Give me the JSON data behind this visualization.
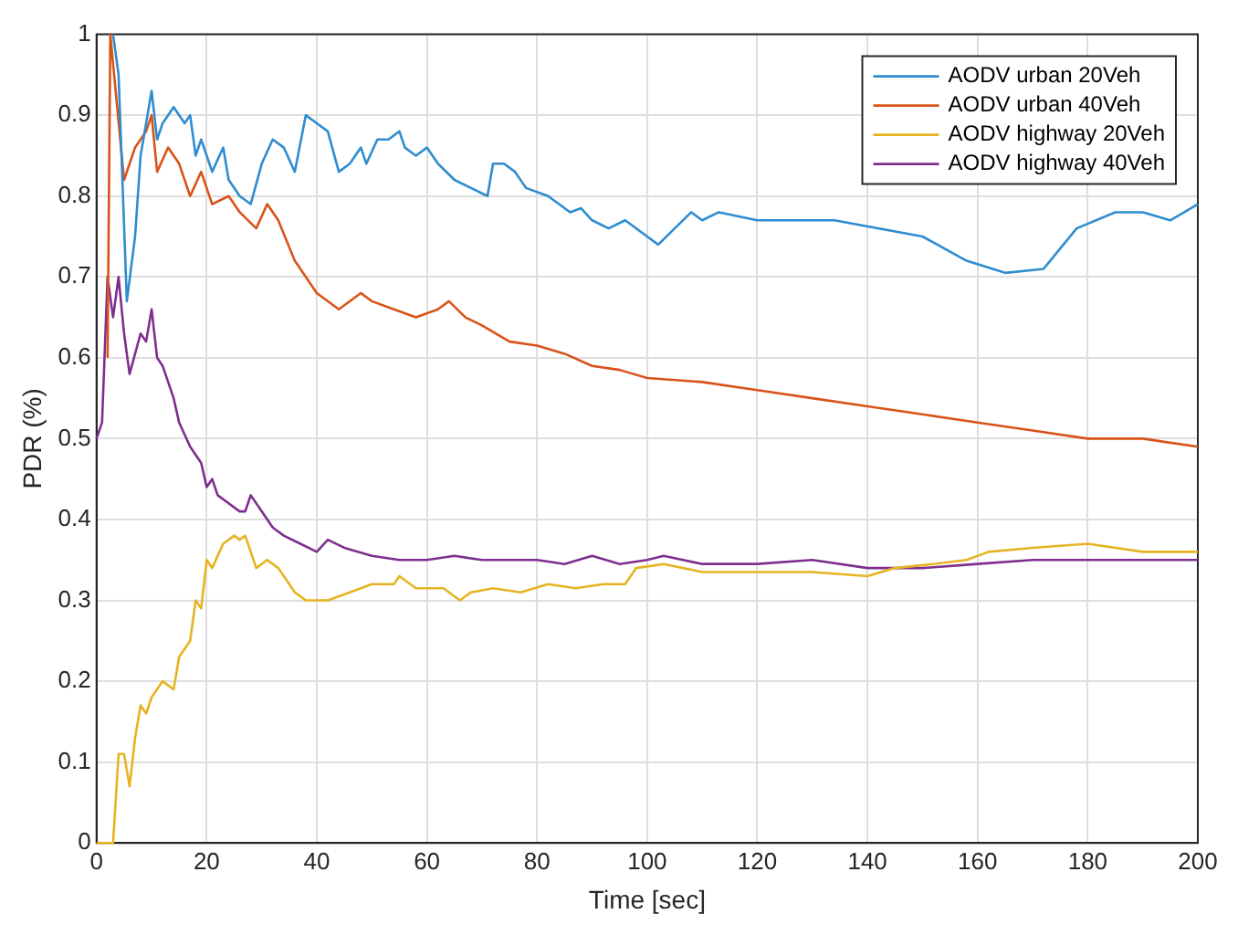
{
  "chart_data": {
    "type": "line",
    "xlabel": "Time [sec]",
    "ylabel": "PDR (%)",
    "xlim": [
      0,
      200
    ],
    "xticks": [
      0,
      20,
      40,
      60,
      80,
      100,
      120,
      140,
      160,
      180,
      200
    ],
    "ylim": [
      0,
      1
    ],
    "yticks": [
      0,
      0.1,
      0.2,
      0.3,
      0.4,
      0.5,
      0.6,
      0.7,
      0.8,
      0.9,
      1
    ],
    "grid": true,
    "legend": "top right",
    "marker": "none",
    "line_style": "solid",
    "series": [
      {
        "name": "AODV urban 20Veh",
        "color": "#2f8ccf",
        "x": [
          3,
          4,
          5.5,
          7,
          8,
          10,
          11,
          12,
          14,
          16,
          17,
          18,
          19,
          21,
          23,
          24,
          26,
          28,
          30,
          32,
          34,
          36,
          38,
          40,
          42,
          44,
          46,
          48,
          49,
          51,
          53,
          55,
          56,
          58,
          60,
          62,
          65,
          68,
          71,
          72,
          74,
          76,
          78,
          82,
          84,
          86,
          88,
          90,
          93,
          96,
          100,
          102,
          105,
          108,
          110,
          113,
          120,
          134,
          150,
          158,
          165,
          172,
          178,
          185,
          190,
          195,
          200
        ],
        "values": [
          1,
          0.95,
          0.67,
          0.75,
          0.85,
          0.93,
          0.87,
          0.89,
          0.91,
          0.89,
          0.9,
          0.85,
          0.87,
          0.83,
          0.86,
          0.82,
          0.8,
          0.79,
          0.84,
          0.87,
          0.86,
          0.83,
          0.9,
          0.89,
          0.88,
          0.83,
          0.84,
          0.86,
          0.84,
          0.87,
          0.87,
          0.88,
          0.86,
          0.85,
          0.86,
          0.84,
          0.82,
          0.81,
          0.8,
          0.84,
          0.84,
          0.83,
          0.81,
          0.8,
          0.79,
          0.78,
          0.785,
          0.77,
          0.76,
          0.77,
          0.75,
          0.74,
          0.76,
          0.78,
          0.77,
          0.78,
          0.77,
          0.77,
          0.75,
          0.72,
          0.705,
          0.71,
          0.76,
          0.78,
          0.78,
          0.77,
          0.79
        ]
      },
      {
        "name": "AODV urban 40Veh",
        "color": "#d95319",
        "x": [
          2,
          2.5,
          5,
          7,
          9,
          10,
          11,
          13,
          15,
          17,
          19,
          21,
          24,
          26,
          29,
          31,
          33,
          36,
          38,
          40,
          44,
          48,
          50,
          54,
          58,
          62,
          64,
          67,
          70,
          75,
          80,
          85,
          90,
          95,
          100,
          110,
          120,
          130,
          140,
          150,
          160,
          170,
          180,
          190,
          200
        ],
        "values": [
          0.6,
          1,
          0.82,
          0.86,
          0.88,
          0.9,
          0.83,
          0.86,
          0.84,
          0.8,
          0.83,
          0.79,
          0.8,
          0.78,
          0.76,
          0.79,
          0.77,
          0.72,
          0.7,
          0.68,
          0.66,
          0.68,
          0.67,
          0.66,
          0.65,
          0.66,
          0.67,
          0.65,
          0.64,
          0.62,
          0.615,
          0.605,
          0.59,
          0.585,
          0.575,
          0.57,
          0.56,
          0.55,
          0.54,
          0.53,
          0.52,
          0.51,
          0.5,
          0.5,
          0.49
        ]
      },
      {
        "name": "AODV highway 20Veh",
        "color": "#e6b422",
        "x": [
          0,
          3,
          4,
          5,
          6,
          7,
          8,
          9,
          10,
          12,
          14,
          15,
          17,
          18,
          19,
          20,
          21,
          23,
          25,
          26,
          27,
          29,
          31,
          33,
          36,
          38,
          42,
          46,
          50,
          54,
          55,
          58,
          63,
          66,
          68,
          72,
          77,
          82,
          87,
          92,
          96,
          98,
          103,
          110,
          120,
          130,
          140,
          145,
          152,
          158,
          162,
          170,
          180,
          190,
          200
        ],
        "values": [
          0,
          0,
          0.11,
          0.11,
          0.07,
          0.13,
          0.17,
          0.16,
          0.18,
          0.2,
          0.19,
          0.23,
          0.25,
          0.3,
          0.29,
          0.35,
          0.34,
          0.37,
          0.38,
          0.375,
          0.38,
          0.34,
          0.35,
          0.34,
          0.31,
          0.3,
          0.3,
          0.31,
          0.32,
          0.32,
          0.33,
          0.315,
          0.315,
          0.3,
          0.31,
          0.315,
          0.31,
          0.32,
          0.315,
          0.32,
          0.32,
          0.34,
          0.345,
          0.335,
          0.335,
          0.335,
          0.33,
          0.34,
          0.345,
          0.35,
          0.36,
          0.365,
          0.37,
          0.36,
          0.36
        ]
      },
      {
        "name": "AODV highway 40Veh",
        "color": "#7e2f8e",
        "x": [
          0,
          1,
          2,
          3,
          4,
          5,
          6,
          8,
          9,
          10,
          11,
          12,
          14,
          15,
          17,
          19,
          20,
          21,
          22,
          24,
          26,
          27,
          28,
          30,
          32,
          34,
          37,
          40,
          42,
          45,
          50,
          55,
          60,
          65,
          70,
          75,
          80,
          85,
          90,
          95,
          100,
          103,
          110,
          120,
          130,
          140,
          150,
          160,
          170,
          180,
          190,
          200
        ],
        "values": [
          0.5,
          0.52,
          0.7,
          0.65,
          0.7,
          0.63,
          0.58,
          0.63,
          0.62,
          0.66,
          0.6,
          0.59,
          0.55,
          0.52,
          0.49,
          0.47,
          0.44,
          0.45,
          0.43,
          0.42,
          0.41,
          0.41,
          0.43,
          0.41,
          0.39,
          0.38,
          0.37,
          0.36,
          0.375,
          0.365,
          0.355,
          0.35,
          0.35,
          0.355,
          0.35,
          0.35,
          0.35,
          0.345,
          0.355,
          0.345,
          0.35,
          0.355,
          0.345,
          0.345,
          0.35,
          0.34,
          0.34,
          0.345,
          0.35,
          0.35,
          0.35,
          0.35
        ]
      }
    ]
  }
}
